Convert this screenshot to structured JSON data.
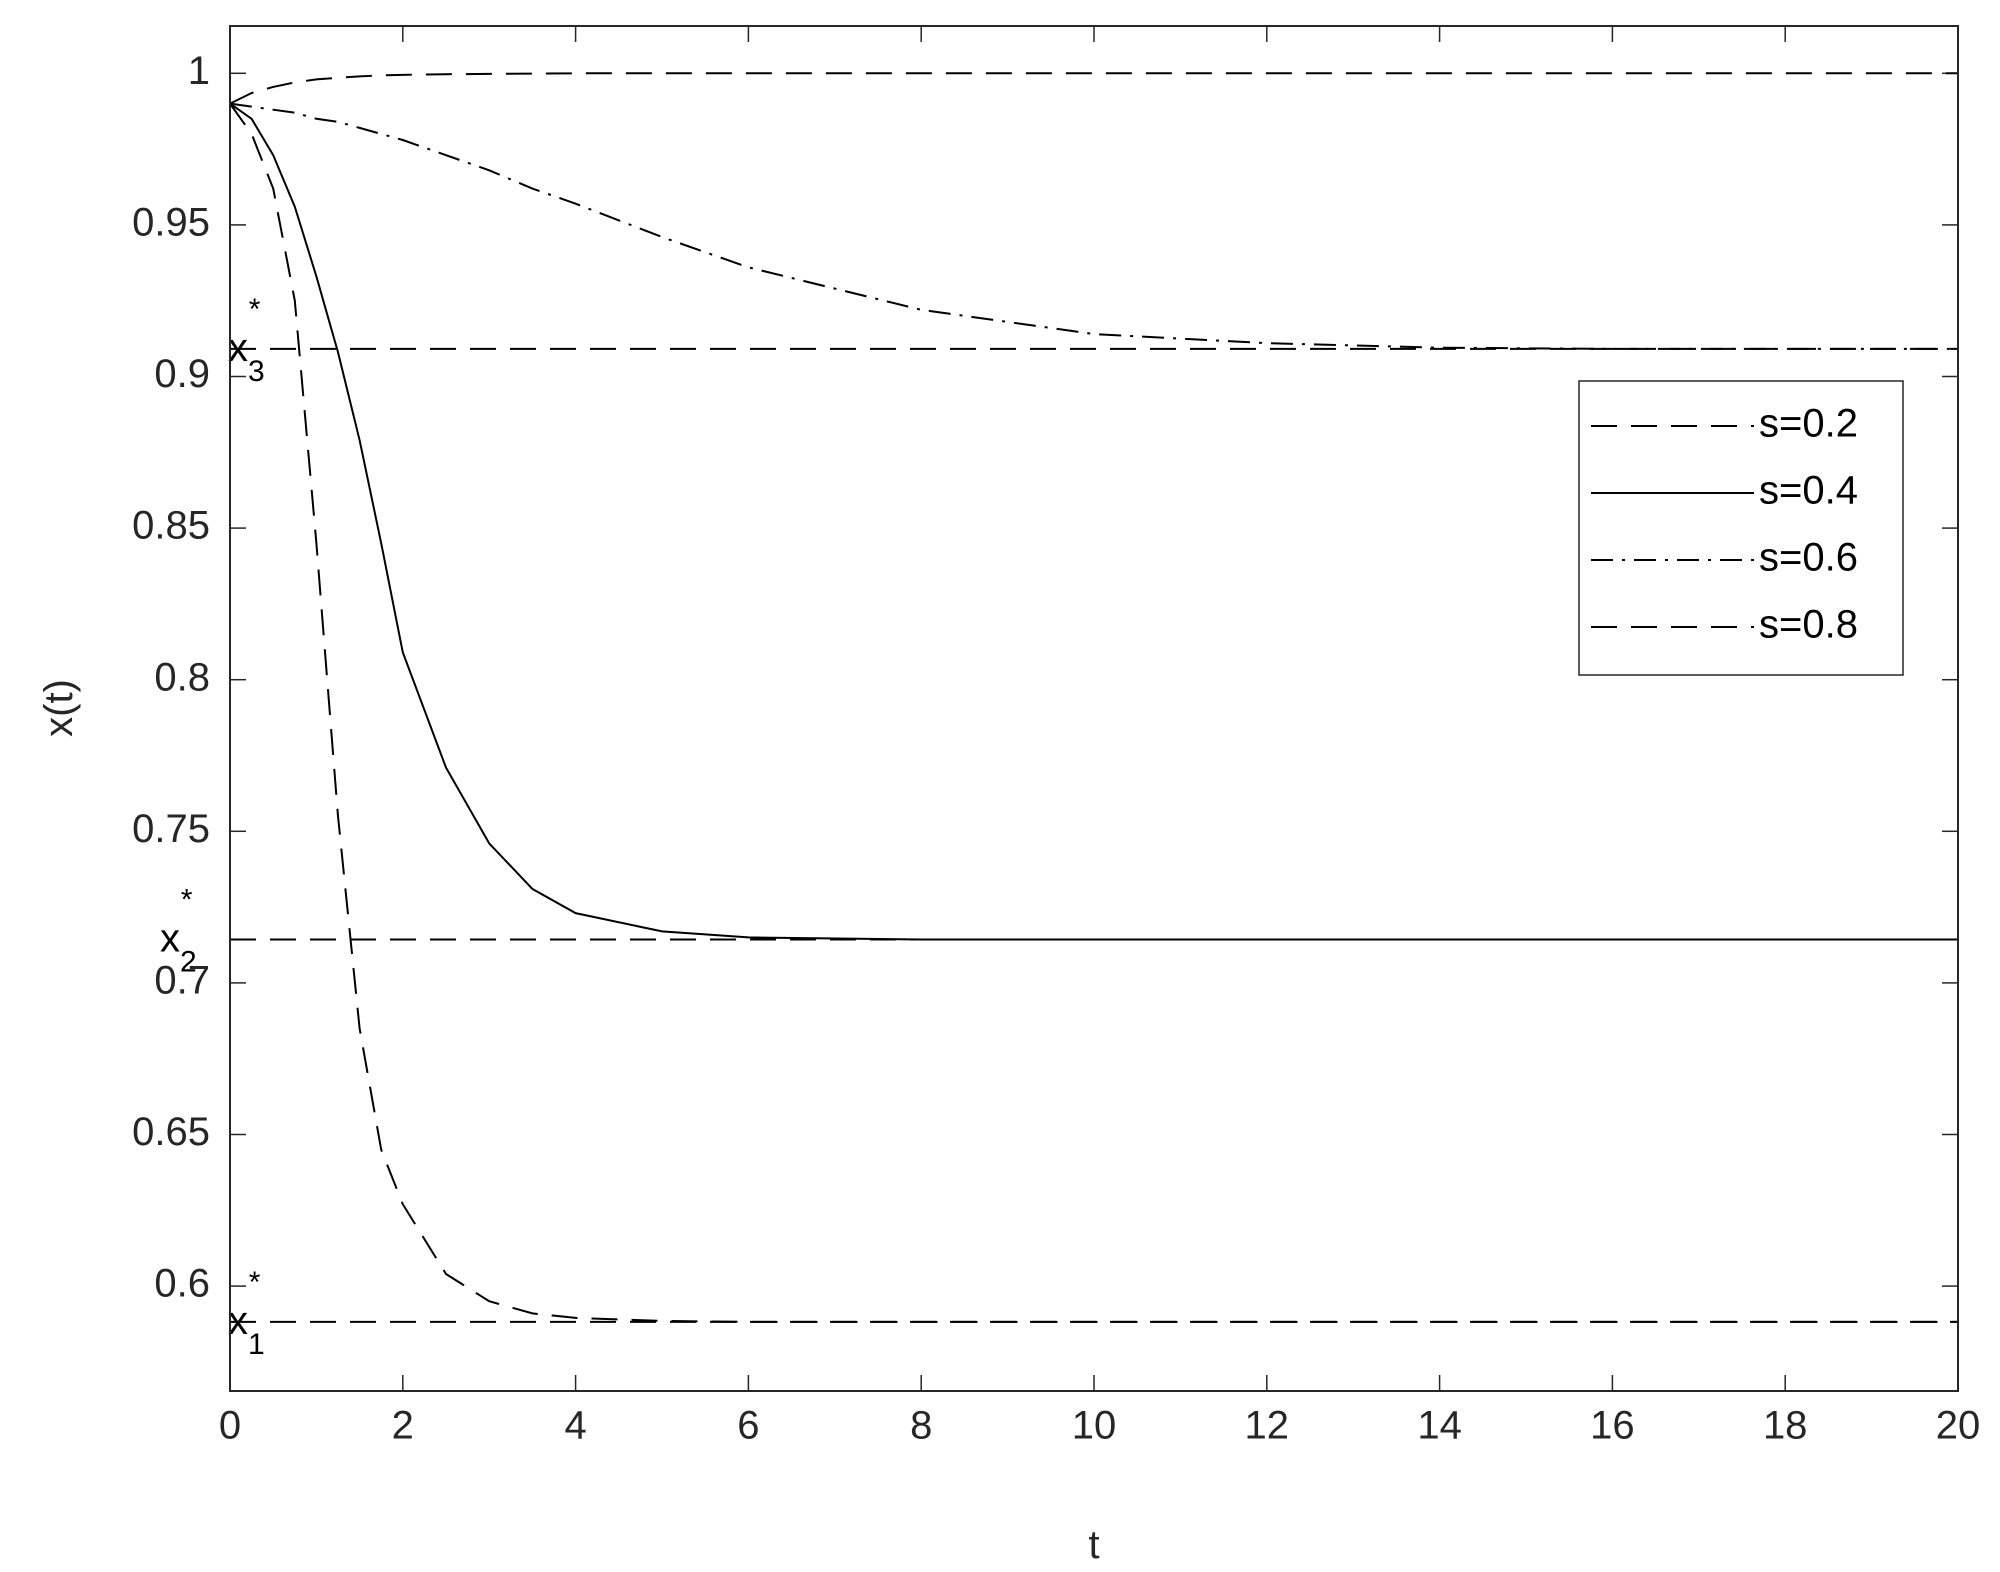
{
  "chart_data": {
    "type": "line",
    "x_label": "t",
    "y_label": "x(t)",
    "x": [
      0,
      0.25,
      0.5,
      0.75,
      1,
      1.25,
      1.5,
      1.75,
      2,
      2.5,
      3,
      3.5,
      4,
      5,
      6,
      8,
      10,
      12,
      14,
      16,
      18,
      20
    ],
    "series": [
      {
        "name": "s=0.2",
        "color": "#000000",
        "linestyle": "--",
        "values": [
          0.99,
          0.9935,
          0.9955,
          0.997,
          0.998,
          0.9985,
          0.999,
          0.9993,
          0.9995,
          0.9997,
          0.9998,
          0.9999,
          1,
          1,
          1,
          1,
          1,
          1,
          1,
          1,
          1,
          1
        ]
      },
      {
        "name": "s=0.4",
        "color": "#000000",
        "linestyle": "-",
        "values": [
          0.99,
          0.985,
          0.973,
          0.956,
          0.933,
          0.908,
          0.879,
          0.845,
          0.809,
          0.771,
          0.746,
          0.731,
          0.723,
          0.717,
          0.715,
          0.7143,
          0.7143,
          0.7143,
          0.7143,
          0.7143,
          0.7143,
          0.7143
        ]
      },
      {
        "name": "s=0.6",
        "color": "#000000",
        "linestyle": "-.",
        "values": [
          0.99,
          0.989,
          0.988,
          0.987,
          0.985,
          0.984,
          0.982,
          0.98,
          0.978,
          0.973,
          0.968,
          0.962,
          0.957,
          0.946,
          0.936,
          0.922,
          0.914,
          0.911,
          0.9095,
          0.9091,
          0.9091,
          0.9091
        ]
      },
      {
        "name": "s=0.8",
        "color": "#000000",
        "linestyle": "--",
        "values": [
          0.99,
          0.98,
          0.962,
          0.925,
          0.845,
          0.755,
          0.685,
          0.645,
          0.627,
          0.604,
          0.595,
          0.591,
          0.5895,
          0.5885,
          0.5882,
          0.5882,
          0.5882,
          0.5882,
          0.5882,
          0.5882,
          0.5882,
          0.5882
        ]
      }
    ],
    "reference_lines": [
      {
        "value": 0.5882,
        "label": {
          "base": "x",
          "sub": "1",
          "sup": "*"
        }
      },
      {
        "value": 0.7143,
        "label": {
          "base": "x",
          "sub": "2",
          "sup": "*"
        }
      },
      {
        "value": 0.9091,
        "label": {
          "base": "x",
          "sub": "3",
          "sup": "*"
        }
      }
    ],
    "xlim": [
      0,
      20
    ],
    "xticks": [
      0,
      2,
      4,
      6,
      8,
      10,
      12,
      14,
      16,
      18,
      20
    ],
    "ylim": [
      0.5654,
      1.0156
    ],
    "yticks": [
      0.6,
      0.65,
      0.7,
      0.75,
      0.8,
      0.85,
      0.9,
      0.95,
      1
    ],
    "grid": false,
    "legend": "northeast"
  }
}
